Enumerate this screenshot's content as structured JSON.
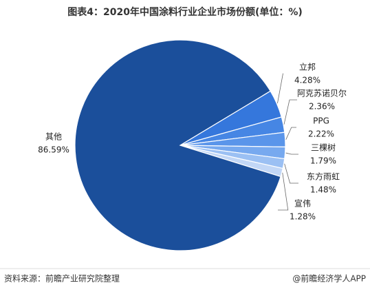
{
  "chart_data": {
    "type": "pie",
    "title": "图表4：2020年中国涂料行业企业市场份额(单位：%)",
    "categories": [
      "立邦",
      "阿克苏诺贝尔",
      "PPG",
      "三棵树",
      "东方雨虹",
      "宣伟",
      "其他"
    ],
    "values": [
      4.28,
      2.36,
      2.22,
      1.79,
      1.48,
      1.28,
      86.59
    ],
    "value_labels": [
      "4.28%",
      "2.36%",
      "2.22%",
      "1.79%",
      "1.48%",
      "1.28%",
      "86.59%"
    ],
    "colors": [
      "#3577dc",
      "#4686e4",
      "#5a95ea",
      "#77a9ef",
      "#9bc0f3",
      "#c2d7f6",
      "#1b4f9b"
    ],
    "source": "资料来源：前瞻产业研究院整理",
    "credit": "@前瞻经济学人APP"
  }
}
